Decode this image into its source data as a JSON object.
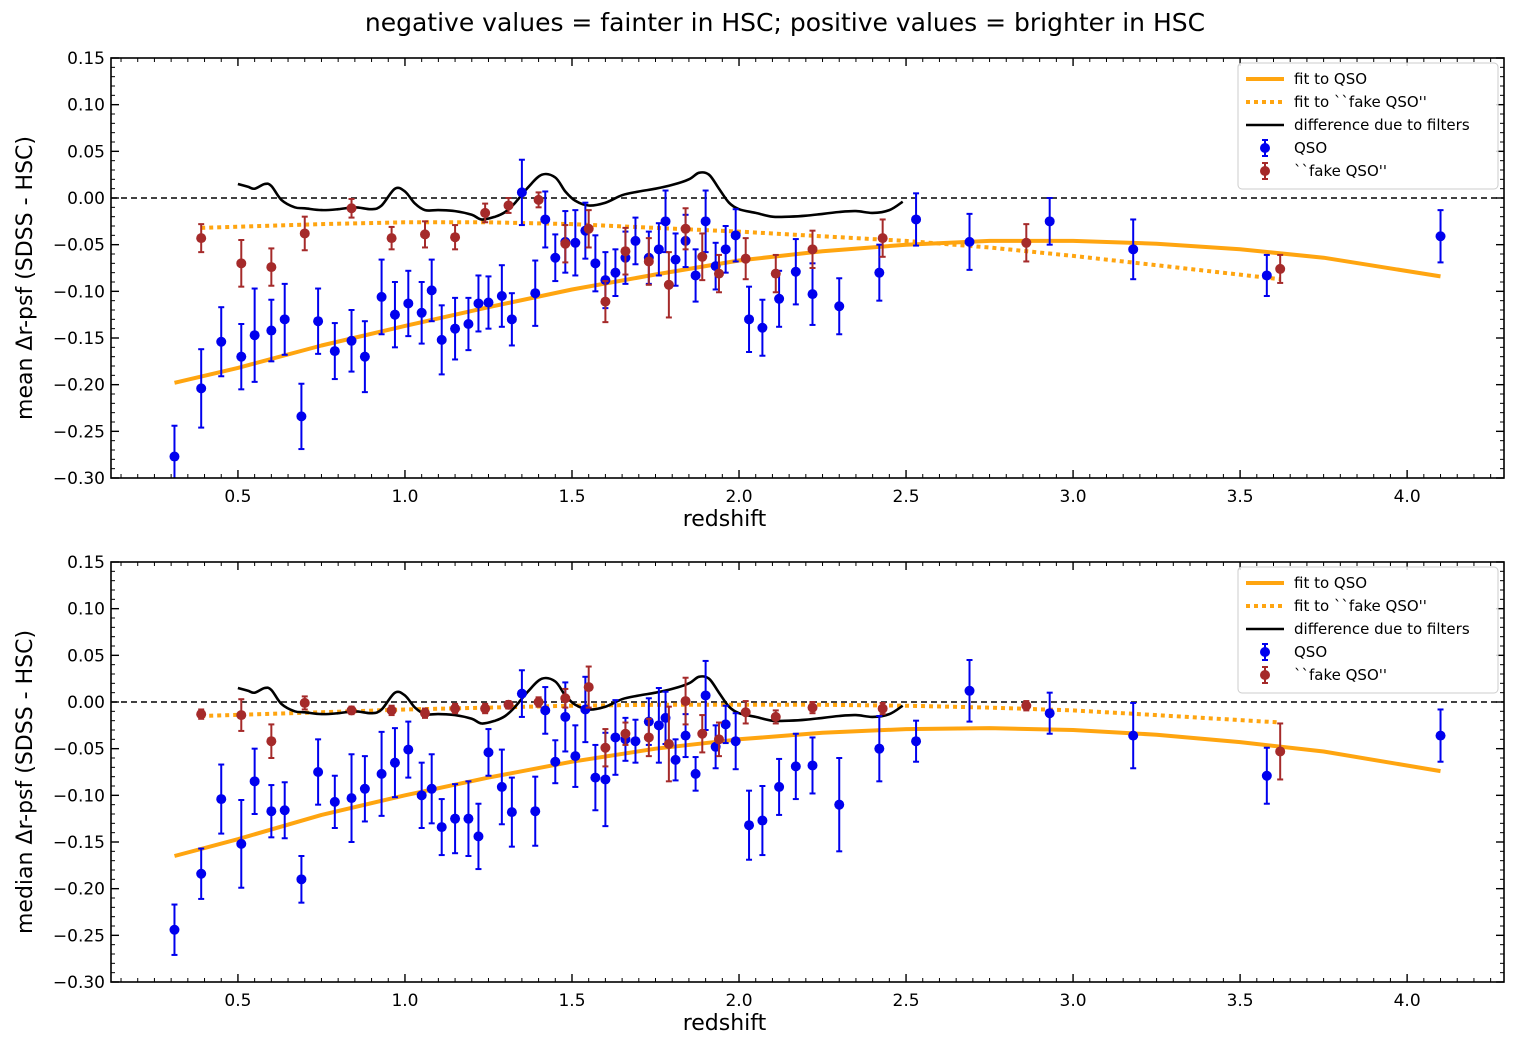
{
  "suptitle": "negative values = fainter in HSC; positive values = brighter in HSC",
  "colors": {
    "qso": "#0000ee",
    "fake": "#a52a2a",
    "fit": "#ffa510",
    "filters": "#000000",
    "zero_line": "#000000"
  },
  "chart_data": [
    {
      "type": "scatter",
      "ylabel": "mean Δr-psf (SDSS - HSC)",
      "xlabel": "redshift",
      "xlim": [
        0.12,
        4.29
      ],
      "ylim": [
        -0.3,
        0.15
      ],
      "xticks": [
        {
          "value": 0.5,
          "label": "0.5"
        },
        {
          "value": 1.0,
          "label": "1.0"
        },
        {
          "value": 1.5,
          "label": "1.5"
        },
        {
          "value": 2.0,
          "label": "2.0"
        },
        {
          "value": 2.5,
          "label": "2.5"
        },
        {
          "value": 3.0,
          "label": "3.0"
        },
        {
          "value": 3.5,
          "label": "3.5"
        },
        {
          "value": 4.0,
          "label": "4.0"
        }
      ],
      "yticks": [
        {
          "value": 0.15,
          "label": "0.15"
        },
        {
          "value": 0.1,
          "label": "0.10"
        },
        {
          "value": 0.05,
          "label": "0.05"
        },
        {
          "value": 0.0,
          "label": "0.00"
        },
        {
          "value": -0.05,
          "label": "−0.05"
        },
        {
          "value": -0.1,
          "label": "−0.10"
        },
        {
          "value": -0.15,
          "label": "−0.15"
        },
        {
          "value": -0.2,
          "label": "−0.20"
        },
        {
          "value": -0.25,
          "label": "−0.25"
        },
        {
          "value": -0.3,
          "label": "−0.30"
        }
      ],
      "legend_position": "top-right",
      "legend": [
        {
          "label": "fit to QSO",
          "kind": "fit"
        },
        {
          "label": "fit to ``fake QSO''",
          "kind": "fake_fit"
        },
        {
          "label": "difference due to filters",
          "kind": "filters"
        },
        {
          "label": "QSO",
          "kind": "qso"
        },
        {
          "label": "``fake QSO''",
          "kind": "fake"
        }
      ],
      "qso": {
        "name": "QSO",
        "x": [
          0.31,
          0.39,
          0.45,
          0.51,
          0.55,
          0.6,
          0.64,
          0.69,
          0.74,
          0.79,
          0.84,
          0.88,
          0.93,
          0.97,
          1.01,
          1.05,
          1.08,
          1.11,
          1.15,
          1.19,
          1.22,
          1.25,
          1.29,
          1.32,
          1.35,
          1.39,
          1.42,
          1.45,
          1.48,
          1.51,
          1.54,
          1.57,
          1.6,
          1.63,
          1.66,
          1.69,
          1.73,
          1.76,
          1.78,
          1.81,
          1.84,
          1.87,
          1.9,
          1.93,
          1.96,
          1.99,
          2.03,
          2.07,
          2.12,
          2.17,
          2.22,
          2.3,
          2.42,
          2.53,
          2.69,
          2.93,
          3.18,
          3.58,
          4.1
        ],
        "y": [
          -0.277,
          -0.204,
          -0.154,
          -0.17,
          -0.147,
          -0.142,
          -0.13,
          -0.234,
          -0.132,
          -0.164,
          -0.153,
          -0.17,
          -0.106,
          -0.125,
          -0.113,
          -0.123,
          -0.099,
          -0.152,
          -0.14,
          -0.135,
          -0.113,
          -0.112,
          -0.105,
          -0.13,
          0.006,
          -0.102,
          -0.023,
          -0.064,
          -0.047,
          -0.048,
          -0.035,
          -0.07,
          -0.088,
          -0.08,
          -0.064,
          -0.046,
          -0.064,
          -0.055,
          -0.025,
          -0.066,
          -0.046,
          -0.083,
          -0.025,
          -0.073,
          -0.055,
          -0.04,
          -0.13,
          -0.139,
          -0.108,
          -0.079,
          -0.103,
          -0.116,
          -0.08,
          -0.023,
          -0.047,
          -0.025,
          -0.055,
          -0.083,
          -0.041
        ],
        "err": [
          0.033,
          0.042,
          0.037,
          0.035,
          0.05,
          0.033,
          0.038,
          0.035,
          0.035,
          0.03,
          0.033,
          0.038,
          0.04,
          0.035,
          0.035,
          0.033,
          0.033,
          0.037,
          0.033,
          0.028,
          0.03,
          0.028,
          0.033,
          0.028,
          0.035,
          0.035,
          0.03,
          0.025,
          0.033,
          0.035,
          0.03,
          0.03,
          0.03,
          0.025,
          0.028,
          0.025,
          0.028,
          0.028,
          0.033,
          0.028,
          0.028,
          0.028,
          0.033,
          0.025,
          0.025,
          0.028,
          0.035,
          0.03,
          0.03,
          0.035,
          0.033,
          0.03,
          0.03,
          0.028,
          0.03,
          0.025,
          0.032,
          0.022,
          0.028
        ]
      },
      "fake": {
        "name": "``fake QSO''",
        "x": [
          0.39,
          0.51,
          0.6,
          0.7,
          0.84,
          0.96,
          1.06,
          1.15,
          1.24,
          1.31,
          1.4,
          1.48,
          1.55,
          1.6,
          1.66,
          1.73,
          1.79,
          1.84,
          1.89,
          1.94,
          2.02,
          2.11,
          2.22,
          2.43,
          2.86,
          3.62
        ],
        "y": [
          -0.043,
          -0.07,
          -0.074,
          -0.038,
          -0.011,
          -0.043,
          -0.039,
          -0.042,
          -0.016,
          -0.008,
          -0.002,
          -0.049,
          -0.033,
          -0.111,
          -0.057,
          -0.068,
          -0.093,
          -0.033,
          -0.063,
          -0.081,
          -0.065,
          -0.081,
          -0.055,
          -0.043,
          -0.048,
          -0.076
        ],
        "err": [
          0.015,
          0.025,
          0.02,
          0.018,
          0.01,
          0.012,
          0.014,
          0.013,
          0.01,
          0.008,
          0.008,
          0.02,
          0.02,
          0.022,
          0.025,
          0.025,
          0.035,
          0.022,
          0.025,
          0.02,
          0.022,
          0.02,
          0.02,
          0.02,
          0.02,
          0.015
        ]
      },
      "fit_qso": {
        "name": "fit to QSO",
        "x": [
          0.31,
          0.5,
          0.75,
          1.0,
          1.25,
          1.5,
          1.75,
          2.0,
          2.25,
          2.5,
          2.75,
          3.0,
          3.25,
          3.5,
          3.75,
          4.1
        ],
        "y": [
          -0.198,
          -0.182,
          -0.158,
          -0.137,
          -0.117,
          -0.098,
          -0.082,
          -0.067,
          -0.057,
          -0.05,
          -0.046,
          -0.046,
          -0.049,
          -0.055,
          -0.064,
          -0.084
        ]
      },
      "fit_fake": {
        "name": "fit to ``fake QSO''",
        "x": [
          0.39,
          0.75,
          1.0,
          1.25,
          1.5,
          1.75,
          2.0,
          2.25,
          2.5,
          2.75,
          3.0,
          3.25,
          3.62
        ],
        "y": [
          -0.032,
          -0.028,
          -0.026,
          -0.026,
          -0.028,
          -0.032,
          -0.036,
          -0.041,
          -0.046,
          -0.053,
          -0.062,
          -0.072,
          -0.087
        ]
      },
      "filters": {
        "name": "difference due to filters",
        "x": [
          0.5,
          0.53,
          0.55,
          0.58,
          0.6,
          0.63,
          0.67,
          0.7,
          0.75,
          0.8,
          0.85,
          0.9,
          0.93,
          0.97,
          1.0,
          1.03,
          1.06,
          1.1,
          1.15,
          1.2,
          1.23,
          1.27,
          1.3,
          1.33,
          1.37,
          1.41,
          1.45,
          1.48,
          1.51,
          1.55,
          1.6,
          1.65,
          1.7,
          1.75,
          1.8,
          1.85,
          1.88,
          1.91,
          1.94,
          1.97,
          2.0,
          2.05,
          2.1,
          2.15,
          2.2,
          2.25,
          2.3,
          2.35,
          2.4,
          2.45,
          2.49
        ],
        "y": [
          0.015,
          0.012,
          0.01,
          0.015,
          0.013,
          -0.002,
          -0.01,
          -0.011,
          -0.013,
          -0.012,
          -0.01,
          -0.012,
          -0.008,
          0.01,
          0.007,
          -0.006,
          -0.013,
          -0.013,
          -0.014,
          -0.018,
          -0.023,
          -0.02,
          -0.015,
          -0.005,
          0.012,
          0.025,
          0.022,
          0.007,
          -0.003,
          -0.008,
          -0.005,
          0.003,
          0.007,
          0.01,
          0.014,
          0.02,
          0.027,
          0.025,
          0.01,
          -0.005,
          -0.012,
          -0.016,
          -0.02,
          -0.02,
          -0.019,
          -0.017,
          -0.015,
          -0.014,
          -0.016,
          -0.013,
          -0.004
        ]
      }
    },
    {
      "type": "scatter",
      "ylabel": "median Δr-psf (SDSS - HSC)",
      "xlabel": "redshift",
      "xlim": [
        0.12,
        4.29
      ],
      "ylim": [
        -0.3,
        0.15
      ],
      "xticks": [
        {
          "value": 0.5,
          "label": "0.5"
        },
        {
          "value": 1.0,
          "label": "1.0"
        },
        {
          "value": 1.5,
          "label": "1.5"
        },
        {
          "value": 2.0,
          "label": "2.0"
        },
        {
          "value": 2.5,
          "label": "2.5"
        },
        {
          "value": 3.0,
          "label": "3.0"
        },
        {
          "value": 3.5,
          "label": "3.5"
        },
        {
          "value": 4.0,
          "label": "4.0"
        }
      ],
      "yticks": [
        {
          "value": 0.15,
          "label": "0.15"
        },
        {
          "value": 0.1,
          "label": "0.10"
        },
        {
          "value": 0.05,
          "label": "0.05"
        },
        {
          "value": 0.0,
          "label": "0.00"
        },
        {
          "value": -0.05,
          "label": "−0.05"
        },
        {
          "value": -0.1,
          "label": "−0.10"
        },
        {
          "value": -0.15,
          "label": "−0.15"
        },
        {
          "value": -0.2,
          "label": "−0.20"
        },
        {
          "value": -0.25,
          "label": "−0.25"
        },
        {
          "value": -0.3,
          "label": "−0.30"
        }
      ],
      "legend_position": "top-right",
      "legend": [
        {
          "label": "fit to QSO",
          "kind": "fit"
        },
        {
          "label": "fit to ``fake QSO''",
          "kind": "fake_fit"
        },
        {
          "label": "difference due to filters",
          "kind": "filters"
        },
        {
          "label": "QSO",
          "kind": "qso"
        },
        {
          "label": "``fake QSO''",
          "kind": "fake"
        }
      ],
      "qso": {
        "name": "QSO",
        "x": [
          0.31,
          0.39,
          0.45,
          0.51,
          0.55,
          0.6,
          0.64,
          0.69,
          0.74,
          0.79,
          0.84,
          0.88,
          0.93,
          0.97,
          1.01,
          1.05,
          1.08,
          1.11,
          1.15,
          1.19,
          1.22,
          1.25,
          1.29,
          1.32,
          1.35,
          1.39,
          1.42,
          1.45,
          1.48,
          1.51,
          1.54,
          1.57,
          1.6,
          1.63,
          1.66,
          1.69,
          1.73,
          1.76,
          1.78,
          1.81,
          1.84,
          1.87,
          1.9,
          1.93,
          1.96,
          1.99,
          2.03,
          2.07,
          2.12,
          2.17,
          2.22,
          2.3,
          2.42,
          2.53,
          2.69,
          2.93,
          3.18,
          3.58,
          4.1
        ],
        "y": [
          -0.244,
          -0.184,
          -0.104,
          -0.152,
          -0.085,
          -0.117,
          -0.116,
          -0.19,
          -0.075,
          -0.107,
          -0.103,
          -0.093,
          -0.077,
          -0.065,
          -0.051,
          -0.1,
          -0.093,
          -0.134,
          -0.125,
          -0.125,
          -0.144,
          -0.054,
          -0.091,
          -0.118,
          0.009,
          -0.117,
          -0.009,
          -0.064,
          -0.016,
          -0.058,
          -0.008,
          -0.081,
          -0.083,
          -0.038,
          -0.04,
          -0.042,
          -0.021,
          -0.025,
          -0.017,
          -0.062,
          -0.036,
          -0.077,
          0.007,
          -0.048,
          -0.024,
          -0.042,
          -0.132,
          -0.127,
          -0.091,
          -0.069,
          -0.068,
          -0.11,
          -0.05,
          -0.042,
          0.012,
          -0.012,
          -0.036,
          -0.079,
          -0.036
        ],
        "err": [
          0.027,
          0.027,
          0.037,
          0.047,
          0.035,
          0.028,
          0.03,
          0.025,
          0.035,
          0.028,
          0.047,
          0.035,
          0.045,
          0.037,
          0.03,
          0.035,
          0.037,
          0.03,
          0.037,
          0.04,
          0.035,
          0.025,
          0.04,
          0.037,
          0.025,
          0.037,
          0.025,
          0.023,
          0.037,
          0.033,
          0.035,
          0.035,
          0.05,
          0.04,
          0.023,
          0.023,
          0.025,
          0.04,
          0.028,
          0.022,
          0.023,
          0.018,
          0.037,
          0.023,
          0.02,
          0.03,
          0.037,
          0.037,
          0.03,
          0.035,
          0.03,
          0.05,
          0.035,
          0.022,
          0.033,
          0.022,
          0.035,
          0.03,
          0.028
        ]
      },
      "fake": {
        "name": "``fake QSO''",
        "x": [
          0.39,
          0.51,
          0.6,
          0.7,
          0.84,
          0.96,
          1.06,
          1.15,
          1.24,
          1.31,
          1.4,
          1.48,
          1.55,
          1.6,
          1.66,
          1.73,
          1.79,
          1.84,
          1.89,
          1.94,
          2.02,
          2.11,
          2.22,
          2.43,
          2.86,
          3.62
        ],
        "y": [
          -0.013,
          -0.014,
          -0.042,
          -0.001,
          -0.009,
          -0.009,
          -0.012,
          -0.007,
          -0.007,
          -0.003,
          0.0,
          0.004,
          0.016,
          -0.049,
          -0.034,
          -0.038,
          -0.045,
          0.001,
          -0.034,
          -0.04,
          -0.011,
          -0.016,
          -0.006,
          -0.007,
          -0.004,
          -0.053
        ],
        "err": [
          0.005,
          0.017,
          0.018,
          0.007,
          0.004,
          0.005,
          0.005,
          0.005,
          0.005,
          0.004,
          0.005,
          0.01,
          0.022,
          0.02,
          0.012,
          0.02,
          0.04,
          0.025,
          0.02,
          0.018,
          0.012,
          0.007,
          0.006,
          0.006,
          0.005,
          0.03
        ]
      },
      "fit_qso": {
        "name": "fit to QSO",
        "x": [
          0.31,
          0.5,
          0.75,
          1.0,
          1.25,
          1.5,
          1.75,
          2.0,
          2.25,
          2.5,
          2.75,
          3.0,
          3.25,
          3.5,
          3.75,
          4.1
        ],
        "y": [
          -0.165,
          -0.147,
          -0.121,
          -0.1,
          -0.081,
          -0.064,
          -0.05,
          -0.04,
          -0.033,
          -0.029,
          -0.028,
          -0.03,
          -0.035,
          -0.043,
          -0.053,
          -0.074
        ]
      },
      "fit_fake": {
        "name": "fit to ``fake QSO''",
        "x": [
          0.39,
          0.75,
          1.0,
          1.25,
          1.5,
          1.75,
          2.0,
          2.25,
          2.5,
          2.75,
          3.0,
          3.25,
          3.62
        ],
        "y": [
          -0.015,
          -0.011,
          -0.008,
          -0.006,
          -0.004,
          -0.003,
          -0.003,
          -0.003,
          -0.004,
          -0.006,
          -0.009,
          -0.014,
          -0.022
        ]
      },
      "filters": {
        "name": "difference due to filters",
        "x": [
          0.5,
          0.53,
          0.55,
          0.58,
          0.6,
          0.63,
          0.67,
          0.7,
          0.75,
          0.8,
          0.85,
          0.9,
          0.93,
          0.97,
          1.0,
          1.03,
          1.06,
          1.1,
          1.15,
          1.2,
          1.23,
          1.27,
          1.3,
          1.33,
          1.37,
          1.41,
          1.45,
          1.48,
          1.51,
          1.55,
          1.6,
          1.65,
          1.7,
          1.75,
          1.8,
          1.85,
          1.88,
          1.91,
          1.94,
          1.97,
          2.0,
          2.05,
          2.1,
          2.15,
          2.2,
          2.25,
          2.3,
          2.35,
          2.4,
          2.45,
          2.49
        ],
        "y": [
          0.015,
          0.012,
          0.01,
          0.015,
          0.013,
          -0.002,
          -0.01,
          -0.011,
          -0.013,
          -0.012,
          -0.01,
          -0.012,
          -0.008,
          0.01,
          0.007,
          -0.006,
          -0.013,
          -0.013,
          -0.014,
          -0.018,
          -0.023,
          -0.02,
          -0.015,
          -0.005,
          0.012,
          0.025,
          0.022,
          0.007,
          -0.003,
          -0.008,
          -0.005,
          0.003,
          0.007,
          0.01,
          0.014,
          0.02,
          0.027,
          0.025,
          0.01,
          -0.005,
          -0.012,
          -0.016,
          -0.02,
          -0.02,
          -0.019,
          -0.017,
          -0.015,
          -0.014,
          -0.016,
          -0.013,
          -0.004
        ]
      }
    }
  ]
}
